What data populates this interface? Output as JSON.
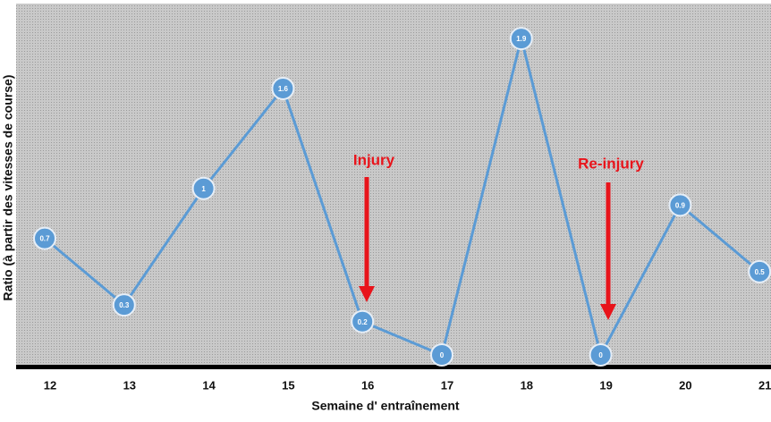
{
  "chart_data": {
    "type": "line",
    "categories": [
      "12",
      "13",
      "14",
      "15",
      "16",
      "17",
      "18",
      "19",
      "20",
      "21"
    ],
    "series": [
      {
        "name": "Ratio",
        "color": "#5b9bd5",
        "values": [
          0.7,
          0.3,
          1,
          1.6,
          0.2,
          0,
          1.9,
          0,
          0.9,
          0.5
        ]
      }
    ],
    "ylim": [
      -0.07,
      2.11
    ],
    "x_label": "Semaine d' entraînement",
    "y_label": "Ratio (à partir des vitesses de course)",
    "annotations": [
      {
        "text": "Injury"
      },
      {
        "text": "Re-injury"
      }
    ]
  }
}
